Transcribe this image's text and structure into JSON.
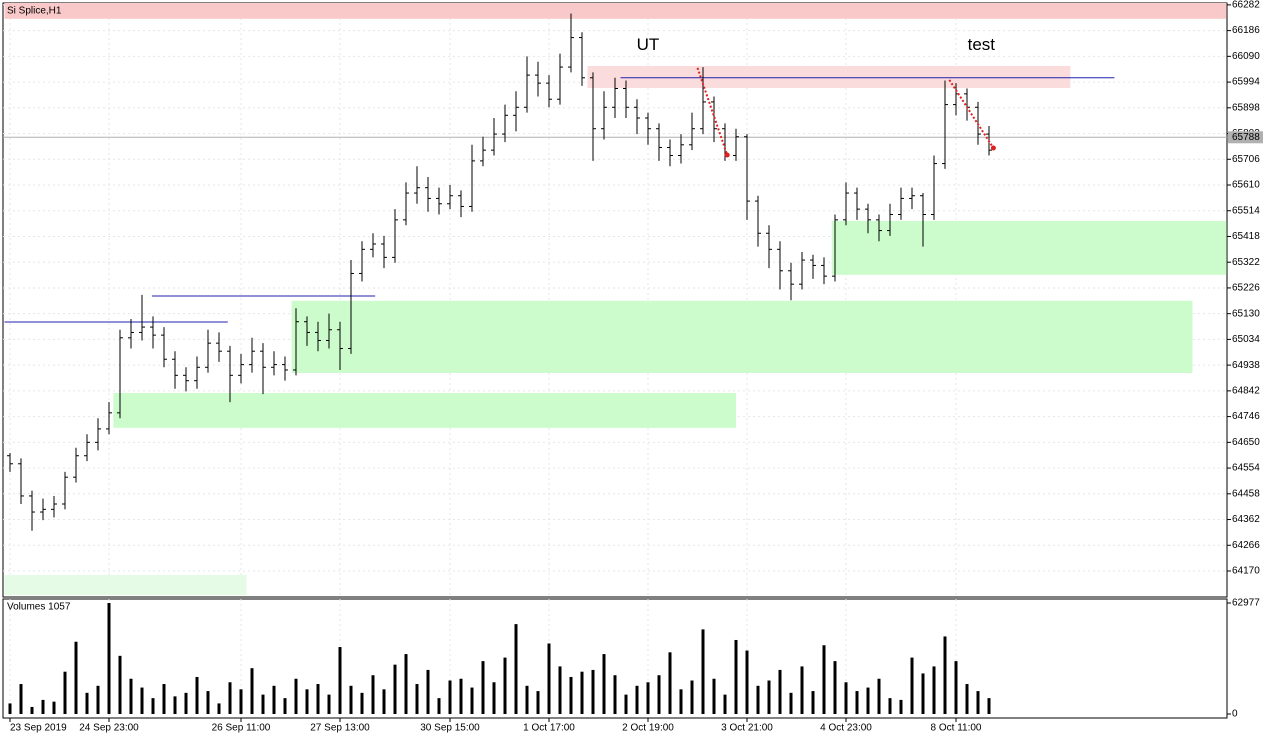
{
  "chart_data": {
    "type": "ohlc",
    "title": "Si Splice,H1",
    "volume_title": "Volumes 1057",
    "categories": [
      "23 Sep 2019",
      null,
      null,
      null,
      null,
      null,
      null,
      null,
      null,
      "24 Sep 23:00",
      null,
      null,
      null,
      null,
      null,
      null,
      null,
      null,
      null,
      null,
      null,
      "26 Sep 11:00",
      null,
      null,
      null,
      null,
      null,
      null,
      null,
      null,
      "27 Sep 13:00",
      null,
      null,
      null,
      null,
      null,
      null,
      null,
      null,
      null,
      "30 Sep 15:00",
      null,
      null,
      null,
      null,
      null,
      null,
      null,
      null,
      "1 Oct 17:00",
      null,
      null,
      null,
      null,
      null,
      null,
      null,
      null,
      "2 Oct 19:00",
      null,
      null,
      null,
      null,
      null,
      null,
      null,
      null,
      "3 Oct 21:00",
      null,
      null,
      null,
      null,
      null,
      null,
      null,
      null,
      "4 Oct 23:00",
      null,
      null,
      null,
      null,
      null,
      null,
      null,
      null,
      null,
      "8 Oct 11:00",
      null,
      null,
      null
    ],
    "open": [
      64600,
      64570,
      64450,
      64390,
      64400,
      64420,
      64520,
      64600,
      64650,
      64700,
      64760,
      65040,
      65060,
      65080,
      65050,
      64960,
      64900,
      64880,
      64930,
      65020,
      64990,
      64900,
      64940,
      64990,
      64930,
      64940,
      64920,
      65100,
      65060,
      65030,
      65070,
      65000,
      65280,
      65370,
      65390,
      65340,
      65480,
      65580,
      65600,
      65560,
      65540,
      65570,
      65530,
      65700,
      65740,
      65800,
      65870,
      65900,
      66020,
      65990,
      65930,
      66050,
      66160,
      66010,
      65820,
      65900,
      65970,
      65900,
      65860,
      65820,
      65750,
      65720,
      65760,
      65820,
      65920,
      65820,
      65720,
      65790,
      65550,
      65430,
      65370,
      65290,
      65240,
      65330,
      65310,
      65270,
      65480,
      65580,
      65520,
      65480,
      65440,
      65500,
      65560,
      65570,
      65500,
      65690,
      65910,
      65950,
      65900,
      65800
    ],
    "high": [
      64610,
      64590,
      64470,
      64440,
      64450,
      64540,
      64630,
      64680,
      64740,
      64800,
      65070,
      65110,
      65200,
      65120,
      65080,
      64990,
      64930,
      64970,
      65070,
      65060,
      65010,
      64980,
      65040,
      65020,
      64990,
      64970,
      65150,
      65120,
      65100,
      65130,
      65100,
      65330,
      65400,
      65430,
      65420,
      65520,
      65620,
      65680,
      65640,
      65600,
      65610,
      65590,
      65760,
      65790,
      65860,
      65910,
      65960,
      66090,
      66070,
      66020,
      66100,
      66250,
      66180,
      66030,
      65960,
      66010,
      66000,
      65930,
      65880,
      65840,
      65780,
      65800,
      65880,
      66050,
      65940,
      65840,
      65820,
      65800,
      65570,
      65460,
      65400,
      65320,
      65360,
      65350,
      65340,
      65500,
      65620,
      65600,
      65540,
      65500,
      65540,
      65600,
      65600,
      65580,
      65720,
      66000,
      65990,
      65970,
      65920,
      65830
    ],
    "low": [
      64540,
      64420,
      64320,
      64360,
      64370,
      64400,
      64500,
      64580,
      64620,
      64680,
      64740,
      65000,
      65030,
      65000,
      64930,
      64850,
      64840,
      64850,
      64910,
      64950,
      64800,
      64870,
      64910,
      64830,
      64900,
      64880,
      64900,
      65010,
      64990,
      65000,
      64920,
      64980,
      65250,
      65340,
      65300,
      65320,
      65460,
      65540,
      65510,
      65500,
      65520,
      65490,
      65510,
      65680,
      65720,
      65770,
      65810,
      65880,
      65940,
      65900,
      65910,
      66030,
      65980,
      65700,
      65780,
      65860,
      65860,
      65800,
      65760,
      65700,
      65680,
      65690,
      65740,
      65800,
      65770,
      65700,
      65700,
      65480,
      65380,
      65300,
      65220,
      65180,
      65220,
      65260,
      65240,
      65250,
      65460,
      65480,
      65430,
      65400,
      65420,
      65480,
      65520,
      65380,
      65480,
      65670,
      65870,
      65850,
      65760,
      65720
    ],
    "close": [
      64570,
      64450,
      64390,
      64400,
      64420,
      64520,
      64600,
      64650,
      64700,
      64760,
      65040,
      65060,
      65080,
      65050,
      64960,
      64900,
      64880,
      64930,
      65020,
      64990,
      64900,
      64940,
      64990,
      64930,
      64940,
      64920,
      65100,
      65060,
      65030,
      65070,
      65000,
      65280,
      65370,
      65390,
      65340,
      65480,
      65580,
      65600,
      65560,
      65540,
      65570,
      65530,
      65700,
      65740,
      65800,
      65870,
      65900,
      66020,
      65990,
      65930,
      66050,
      66160,
      66010,
      65820,
      65900,
      65970,
      65900,
      65860,
      65820,
      65750,
      65720,
      65760,
      65820,
      65920,
      65820,
      65720,
      65790,
      65550,
      65430,
      65370,
      65290,
      65240,
      65330,
      65310,
      65270,
      65480,
      65580,
      65520,
      65480,
      65440,
      65500,
      65560,
      65570,
      65500,
      65690,
      65910,
      65950,
      65900,
      65800,
      65740
    ],
    "volume": [
      6000,
      17000,
      4000,
      8000,
      7000,
      24000,
      41000,
      12000,
      16000,
      62977,
      33000,
      20000,
      15000,
      9000,
      17000,
      10000,
      12000,
      21000,
      13000,
      6000,
      18000,
      14000,
      26000,
      11000,
      16000,
      9000,
      20000,
      14000,
      17000,
      11000,
      38000,
      16000,
      12000,
      22000,
      14000,
      28000,
      34000,
      17000,
      25000,
      9000,
      19000,
      20000,
      15000,
      30000,
      18000,
      32000,
      51000,
      16000,
      13000,
      40000,
      27000,
      21000,
      24000,
      25000,
      34000,
      22000,
      11000,
      16000,
      18000,
      22000,
      35000,
      14000,
      19000,
      48000,
      20000,
      11000,
      42000,
      36000,
      16000,
      19000,
      25000,
      12000,
      27000,
      13000,
      39000,
      30000,
      18000,
      13000,
      15000,
      20000,
      9000,
      8000,
      32000,
      23000,
      27000,
      44000,
      30000,
      17000,
      13000,
      9000
    ],
    "ylim": [
      64073,
      66289
    ],
    "yticks": [
      66282,
      66186,
      66090,
      65994,
      65898,
      65802,
      65706,
      65610,
      65514,
      65418,
      65322,
      65226,
      65130,
      65034,
      64938,
      64842,
      64746,
      64650,
      64554,
      64458,
      64362,
      64266,
      64170
    ],
    "vlim": [
      0,
      62977
    ],
    "vticks": [
      62977,
      0
    ],
    "last_price": 65788,
    "grid": true,
    "bar_color": "#000000",
    "volume_color": "#000000",
    "zones": [
      {
        "x": [
          -0.5,
          110.6
        ],
        "range": [
          66230,
          66289
        ],
        "color": "#f9c9c9"
      },
      {
        "x": [
          52.5,
          96.4
        ],
        "range": [
          65972,
          66054
        ],
        "color": "#fbdcdc"
      },
      {
        "x": [
          74.7,
          110.6
        ],
        "range": [
          65275,
          65476
        ],
        "color": "#ccfbcc"
      },
      {
        "x": [
          25.6,
          107.5
        ],
        "range": [
          64909,
          65178
        ],
        "color": "#ccfbcc"
      },
      {
        "x": [
          9.4,
          66
        ],
        "range": [
          64704,
          64834
        ],
        "color": "#ccfbcc"
      },
      {
        "x": [
          -0.5,
          21.5
        ],
        "range": [
          64080,
          64155
        ],
        "color": "#e6fbe6"
      }
    ],
    "levels": [
      {
        "x": [
          -0.5,
          19.8
        ],
        "price": 65099,
        "color": "#2020b0"
      },
      {
        "x": [
          12.9,
          33.2
        ],
        "price": 65196,
        "color": "#2020b0"
      },
      {
        "x": [
          55.5,
          100.4
        ],
        "price": 66010,
        "color": "#2020b0"
      }
    ],
    "arrows": [
      {
        "x": [
          62.5,
          65.2
        ],
        "price": [
          66047,
          65722
        ],
        "color": "#e02020"
      },
      {
        "x": [
          85.4,
          89.4
        ],
        "price": [
          66002,
          65748
        ],
        "color": "#e02020"
      }
    ],
    "annotations": [
      {
        "text": "UT",
        "x": 58,
        "price": 66130
      },
      {
        "text": "test",
        "x": 88.3,
        "price": 66130
      }
    ]
  }
}
